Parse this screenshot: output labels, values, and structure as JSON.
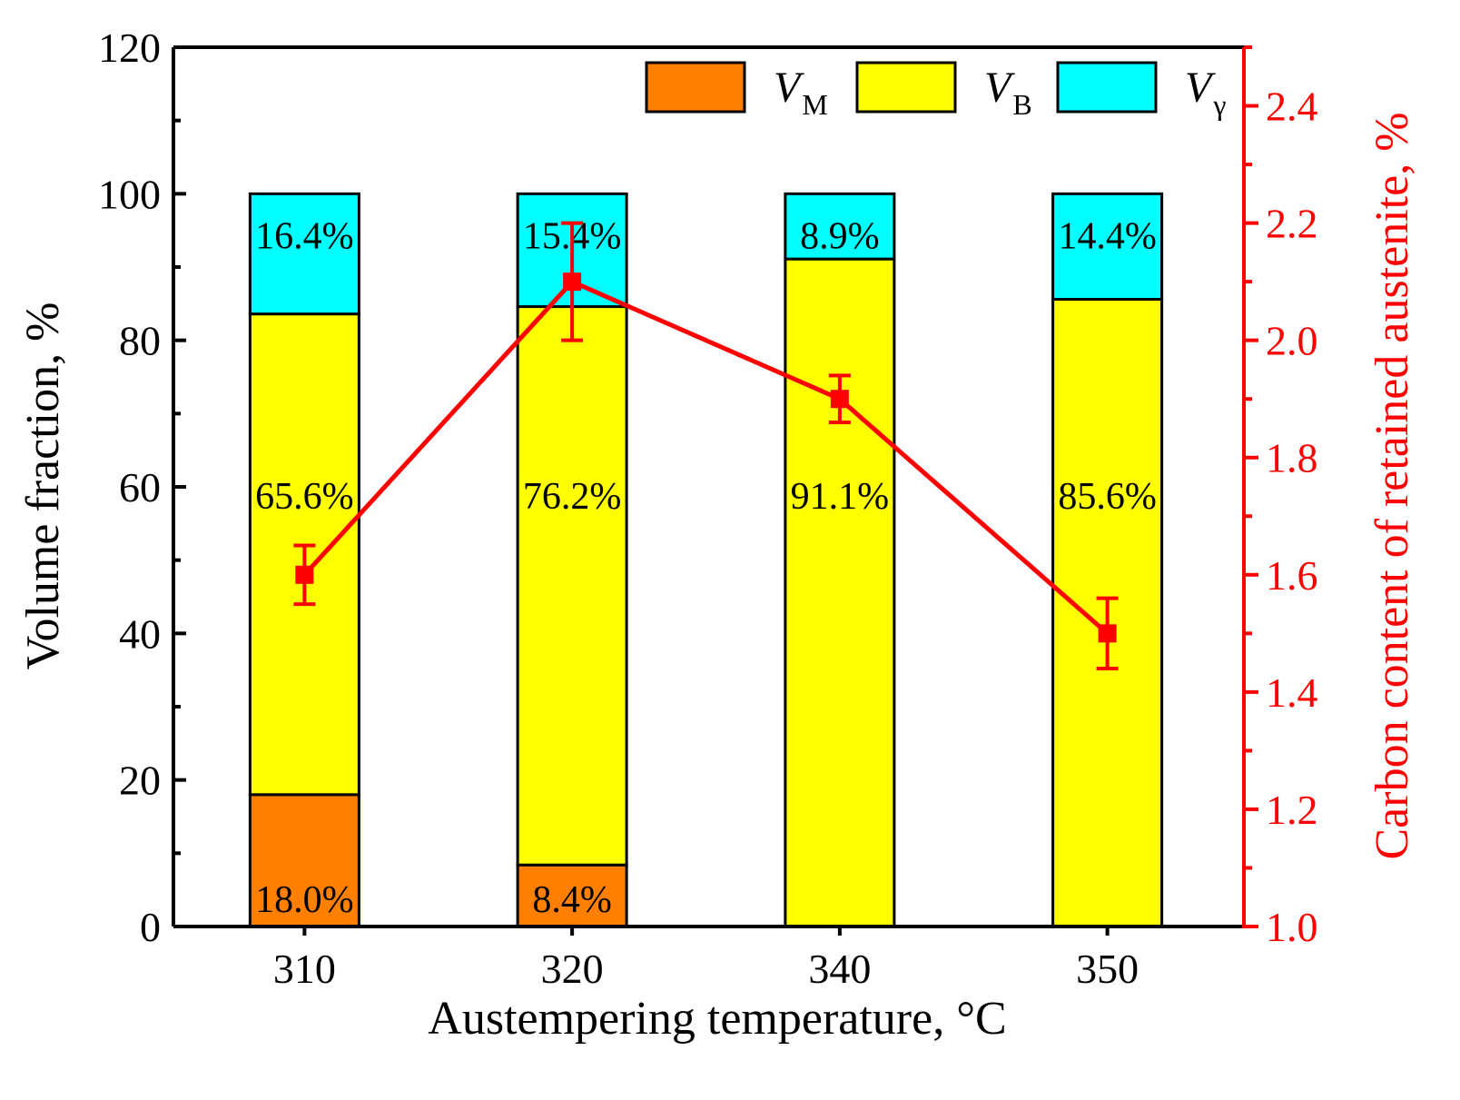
{
  "chart_data": {
    "type": "bar",
    "stacked": true,
    "categories": [
      "310",
      "320",
      "340",
      "350"
    ],
    "xlabel": "Austempering temperature, °C",
    "ylabel": "Volume fraction, %",
    "ylim": [
      0,
      120
    ],
    "yticks": [
      "0",
      "20",
      "40",
      "60",
      "80",
      "100",
      "120"
    ],
    "y2label": "Carbon content of retained austenite, %",
    "y2lim": [
      1.0,
      2.5
    ],
    "y2ticks": [
      "1.0",
      "1.2",
      "1.4",
      "1.6",
      "1.8",
      "2.0",
      "2.2",
      "2.4"
    ],
    "series": [
      {
        "name": "V_M",
        "sym": "V",
        "sub": "M",
        "color": "#ff8000",
        "values": [
          18.0,
          8.4,
          0,
          0
        ],
        "labels": [
          "18.0%",
          "8.4%",
          "",
          ""
        ]
      },
      {
        "name": "V_B",
        "sym": "V",
        "sub": "B",
        "color": "#ffff00",
        "values": [
          65.6,
          76.2,
          91.1,
          85.6
        ],
        "labels": [
          "65.6%",
          "76.2%",
          "91.1%",
          "85.6%"
        ]
      },
      {
        "name": "V_γ",
        "sym": "V",
        "sub": "γ",
        "color": "#00ffff",
        "values": [
          16.4,
          15.4,
          8.9,
          14.4
        ],
        "labels": [
          "16.4%",
          "15.4%",
          "8.9%",
          "14.4%"
        ]
      }
    ],
    "line": {
      "name": "Carbon content of retained austenite",
      "color": "#ff0000",
      "axis": "right",
      "values": [
        1.6,
        2.1,
        1.9,
        1.5
      ],
      "err": [
        0.05,
        0.1,
        0.04,
        0.06
      ]
    },
    "legend_position": "top-right"
  }
}
